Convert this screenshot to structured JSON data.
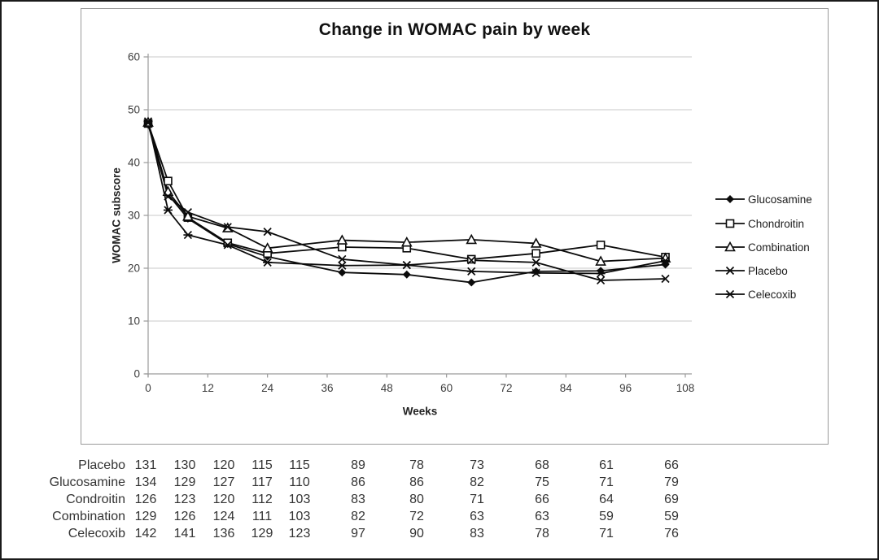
{
  "chart_data": {
    "type": "line",
    "title": "Change in WOMAC pain by week",
    "xlabel": "Weeks",
    "ylabel": "WOMAC subscore",
    "x": [
      0,
      4,
      8,
      16,
      24,
      39,
      52,
      65,
      78,
      91,
      104
    ],
    "xticks": [
      0,
      12,
      24,
      36,
      48,
      60,
      72,
      84,
      96,
      108
    ],
    "yticks": [
      0,
      10,
      20,
      30,
      40,
      50,
      60
    ],
    "xlim": [
      0,
      110
    ],
    "ylim": [
      0,
      60
    ],
    "grid": "horizontal",
    "legend_position": "right",
    "line_color": "#0b0b0b",
    "gridline_color": "#c9c9c9",
    "axis_color": "#9a9a9a",
    "series": [
      {
        "name": "Glucosamine",
        "marker": "diamond-filled",
        "values": [
          47.2,
          34.0,
          29.4,
          24.6,
          22.2,
          19.2,
          18.8,
          17.3,
          19.4,
          19.5,
          20.7
        ]
      },
      {
        "name": "Chondroitin",
        "marker": "square-open",
        "values": [
          47.4,
          36.5,
          29.6,
          24.8,
          22.8,
          24.0,
          23.8,
          21.7,
          22.8,
          24.4,
          22.1
        ]
      },
      {
        "name": "Combination",
        "marker": "triangle-open",
        "values": [
          47.6,
          34.5,
          29.8,
          27.6,
          23.8,
          25.3,
          24.9,
          25.4,
          24.7,
          21.3,
          21.9
        ]
      },
      {
        "name": "Placebo",
        "marker": "x-cross",
        "values": [
          47.5,
          33.6,
          30.6,
          27.8,
          26.9,
          21.7,
          20.6,
          21.5,
          21.1,
          17.7,
          18.0
        ]
      },
      {
        "name": "Celecoxib",
        "marker": "asterisk",
        "values": [
          47.8,
          31.0,
          26.3,
          24.4,
          21.1,
          20.5,
          20.6,
          19.4,
          19.1,
          19.0,
          21.4
        ]
      }
    ]
  },
  "table": {
    "rows": [
      {
        "label": "Placebo",
        "values": [
          131,
          130,
          120,
          115,
          115,
          89,
          78,
          73,
          68,
          61,
          66
        ]
      },
      {
        "label": "Glucosamine",
        "values": [
          134,
          129,
          127,
          117,
          110,
          86,
          86,
          82,
          75,
          71,
          79
        ]
      },
      {
        "label": "Condroitin",
        "values": [
          126,
          123,
          120,
          112,
          103,
          83,
          80,
          71,
          66,
          64,
          69
        ]
      },
      {
        "label": "Combination",
        "values": [
          129,
          126,
          124,
          111,
          103,
          82,
          72,
          63,
          63,
          59,
          59
        ]
      },
      {
        "label": "Celecoxib",
        "values": [
          142,
          141,
          136,
          129,
          123,
          97,
          90,
          83,
          78,
          71,
          76
        ]
      }
    ]
  }
}
